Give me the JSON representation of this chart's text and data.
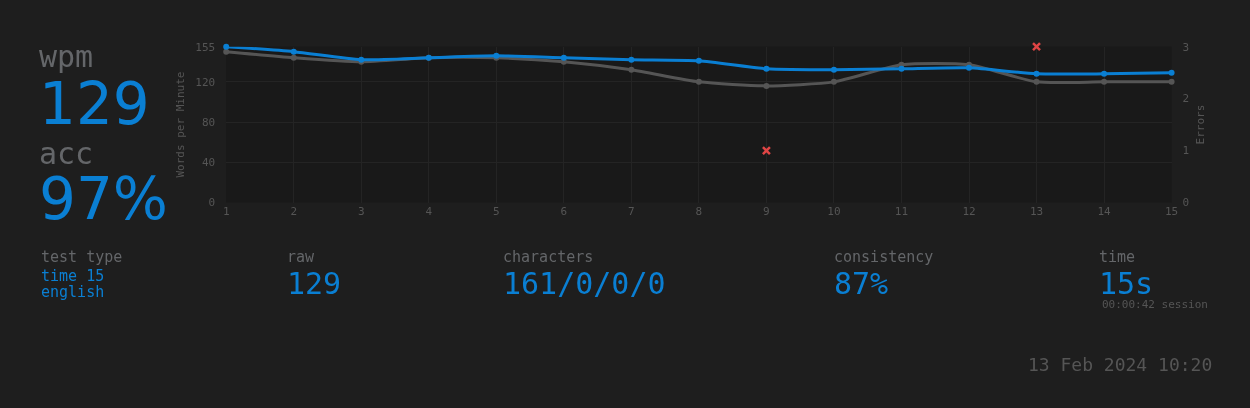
{
  "chart_data": {
    "type": "line",
    "ylabel": "Words per Minute",
    "y2label": "Errors",
    "x": [
      1,
      2,
      3,
      4,
      5,
      6,
      7,
      8,
      9,
      10,
      11,
      12,
      13,
      14,
      15
    ],
    "series": [
      {
        "color": "#555555",
        "marker": "circle",
        "values": [
          150,
          144,
          140,
          144,
          144,
          140,
          132,
          120,
          116,
          120,
          137,
          137,
          120,
          120,
          120
        ]
      },
      {
        "color": "#0a7fd3",
        "marker": "circle",
        "values": [
          155,
          150,
          142,
          144,
          146,
          144,
          142,
          141,
          133,
          132,
          133,
          134,
          128,
          128,
          129
        ]
      },
      {
        "type": "scatter",
        "axis": "y2",
        "color": "#e04545",
        "marker": "cross",
        "values": [
          null,
          null,
          null,
          null,
          null,
          null,
          null,
          null,
          1,
          null,
          null,
          null,
          3,
          null,
          null
        ]
      }
    ],
    "xlim": [
      1,
      15
    ],
    "xticks": [
      1,
      2,
      3,
      4,
      5,
      6,
      7,
      8,
      9,
      10,
      11,
      12,
      13,
      14,
      15
    ],
    "ylim": [
      0,
      155
    ],
    "yticks": [
      0,
      40,
      80,
      120,
      155
    ],
    "y2lim": [
      0,
      3
    ],
    "y2ticks": [
      0,
      1,
      2,
      3
    ],
    "grid": true,
    "annotations": [
      "wpm",
      "129",
      "acc",
      "97%",
      "test type",
      "time 15",
      "english",
      "raw",
      "129",
      "characters",
      "161/0/0/0",
      "consistency",
      "87%",
      "time",
      "15s",
      "00:00:42 session",
      "13 Feb 2024 10:20"
    ]
  }
}
